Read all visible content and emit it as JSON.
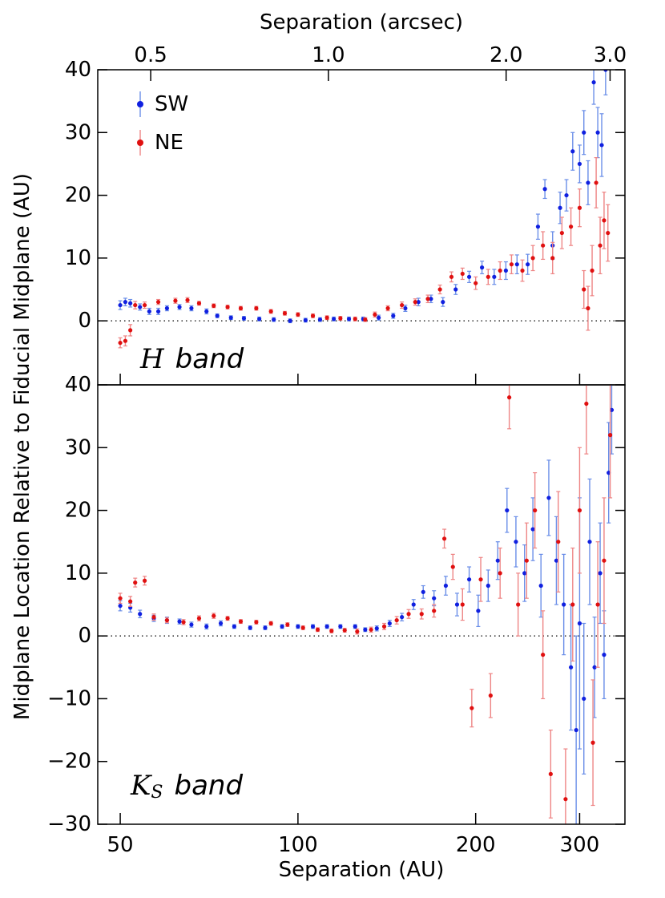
{
  "chart_data": [
    {
      "type": "scatter",
      "x2label": "Separation (arcsec)",
      "ylabel": "Midplane Location Relative to Fiducial Midplane (AU)",
      "annotation": [
        "H",
        "band"
      ],
      "xscale": "log",
      "xlim": [
        45.8,
        358
      ],
      "x2lim": [
        0.4067,
        3.179
      ],
      "x2ticks": [
        {
          "value": 0.5,
          "label": "0.5"
        },
        {
          "value": 1,
          "label": "1.0"
        },
        {
          "value": 2,
          "label": "2.0"
        },
        {
          "value": 3,
          "label": "3.0"
        }
      ],
      "ylim": [
        -10.2,
        40
      ],
      "yticks": [
        0,
        10,
        20,
        30,
        40
      ],
      "zero_line": true,
      "legend": "upper left",
      "series": [
        {
          "name": "SW",
          "color": "#1020e0",
          "errorbar_color": "#6a8ee8",
          "x": [
            50,
            51,
            52,
            54,
            56,
            58,
            60,
            63,
            66,
            70,
            73,
            77,
            81,
            86,
            91,
            97,
            103,
            109,
            115,
            122,
            129,
            137,
            145,
            152,
            160,
            168,
            176,
            185,
            195,
            205,
            215,
            225,
            235,
            245,
            255,
            262,
            270,
            278,
            285,
            292,
            300,
            305,
            310,
            317,
            322,
            327,
            332
          ],
          "values": [
            2.5,
            3,
            2.8,
            2.2,
            1.5,
            1.5,
            2.0,
            2.2,
            2.0,
            1.5,
            0.8,
            0.5,
            0.4,
            0.3,
            0.2,
            0.0,
            0.1,
            0.2,
            0.3,
            0.3,
            0.3,
            0.5,
            0.8,
            2.0,
            3.0,
            3.5,
            3.0,
            5.0,
            7,
            8.5,
            7,
            8,
            9,
            9,
            15,
            21,
            12,
            18,
            20,
            27,
            25,
            30,
            22,
            38,
            30,
            28,
            40
          ],
          "errors": [
            0.7,
            0.6,
            0.6,
            0.5,
            0.5,
            0.5,
            0.4,
            0.4,
            0.4,
            0.4,
            0.3,
            0.3,
            0.3,
            0.3,
            0.3,
            0.3,
            0.3,
            0.3,
            0.3,
            0.3,
            0.3,
            0.4,
            0.4,
            0.5,
            0.6,
            0.6,
            0.7,
            0.8,
            0.9,
            1,
            1.2,
            1.4,
            1.5,
            1.6,
            2,
            1.5,
            2.2,
            2.5,
            2.5,
            3,
            3,
            3.5,
            3.5,
            3.5,
            4,
            5,
            4
          ]
        },
        {
          "name": "NE",
          "color": "#e01010",
          "errorbar_color": "#ee8585",
          "x": [
            50,
            51,
            52,
            53,
            55,
            58,
            62,
            65,
            68,
            72,
            76,
            80,
            85,
            90,
            95,
            100,
            106,
            112,
            118,
            125,
            130,
            135,
            142,
            150,
            158,
            166,
            174,
            182,
            190,
            200,
            210,
            220,
            230,
            240,
            250,
            260,
            270,
            280,
            290,
            300,
            305,
            310,
            315,
            320,
            325,
            330,
            335
          ],
          "values": [
            -3.5,
            -3.2,
            -1.5,
            2.5,
            2.5,
            3.0,
            3.2,
            3.3,
            2.8,
            2.4,
            2.2,
            2.0,
            2.0,
            1.5,
            1.2,
            1.0,
            0.8,
            0.5,
            0.4,
            0.3,
            0.2,
            1.0,
            2.0,
            2.5,
            3.0,
            3.5,
            5,
            7,
            7.5,
            6,
            7,
            8,
            9,
            8,
            10,
            12,
            10,
            14,
            15,
            18,
            5,
            2,
            8,
            22,
            12,
            16,
            14
          ],
          "errors": [
            0.8,
            0.8,
            0.9,
            0.6,
            0.5,
            0.4,
            0.4,
            0.4,
            0.3,
            0.3,
            0.3,
            0.3,
            0.3,
            0.3,
            0.3,
            0.3,
            0.3,
            0.3,
            0.3,
            0.3,
            0.3,
            0.4,
            0.4,
            0.5,
            0.5,
            0.6,
            0.7,
            0.8,
            0.9,
            1,
            1.2,
            1.4,
            1.5,
            1.7,
            2,
            2.2,
            2.5,
            2.5,
            3,
            3,
            3,
            3.5,
            4,
            4,
            4.5,
            4.5,
            4.5
          ]
        }
      ]
    },
    {
      "type": "scatter",
      "xlabel": "Separation (AU)",
      "annotation": [
        "K",
        "S",
        "band"
      ],
      "xscale": "log",
      "xlim": [
        45.8,
        358
      ],
      "xticks": [
        50,
        100,
        200,
        300
      ],
      "ylim": [
        -30,
        40
      ],
      "yticks": [
        {
          "value": -30,
          "label": "−30"
        },
        {
          "value": -20,
          "label": "−20"
        },
        {
          "value": -10,
          "label": "−10"
        },
        0,
        10,
        20,
        30,
        40
      ],
      "zero_line": true,
      "series": [
        {
          "name": "SW",
          "color": "#1020e0",
          "errorbar_color": "#6a8ee8",
          "x": [
            50,
            52,
            54,
            57,
            60,
            63,
            66,
            70,
            74,
            78,
            83,
            88,
            94,
            100,
            106,
            112,
            118,
            125,
            130,
            136,
            143,
            150,
            157,
            163,
            170,
            178,
            186,
            195,
            202,
            210,
            218,
            226,
            234,
            242,
            250,
            258,
            266,
            274,
            282,
            290,
            296,
            300,
            305,
            312,
            318,
            325,
            330,
            336,
            340
          ],
          "values": [
            4.8,
            4.5,
            3.5,
            2.8,
            2.5,
            2.3,
            1.8,
            1.5,
            2,
            1.5,
            1.3,
            1.3,
            1.5,
            1.5,
            1.5,
            1.5,
            1.5,
            1.5,
            1.0,
            1.2,
            2.0,
            3,
            5,
            7,
            6,
            8,
            5,
            9,
            4,
            8,
            12,
            20,
            15,
            10,
            17,
            8,
            22,
            12,
            5,
            -5,
            -15,
            2,
            -10,
            15,
            -5,
            10,
            -3,
            26,
            36
          ],
          "errors": [
            0.8,
            0.7,
            0.6,
            0.5,
            0.5,
            0.4,
            0.4,
            0.4,
            0.4,
            0.3,
            0.3,
            0.3,
            0.3,
            0.3,
            0.3,
            0.3,
            0.3,
            0.3,
            0.3,
            0.4,
            0.5,
            0.6,
            0.8,
            1,
            1.2,
            1.5,
            1.8,
            2,
            2.5,
            2.5,
            3,
            3.5,
            4,
            4.5,
            5,
            5,
            6,
            7,
            8,
            10,
            15,
            20,
            12,
            10,
            8,
            8,
            7,
            8,
            7
          ]
        },
        {
          "name": "NE",
          "color": "#e01010",
          "errorbar_color": "#ee8585",
          "x": [
            50,
            52,
            53,
            55,
            57,
            60,
            64,
            68,
            72,
            76,
            80,
            85,
            90,
            96,
            102,
            108,
            114,
            120,
            126,
            133,
            140,
            147,
            154,
            162,
            170,
            177,
            183,
            190,
            197,
            204,
            212,
            220,
            228,
            236,
            244,
            252,
            260,
            268,
            276,
            284,
            292,
            300,
            308,
            316,
            322,
            330,
            338
          ],
          "values": [
            6,
            5.5,
            8.5,
            8.8,
            3,
            2.5,
            2.2,
            2.8,
            3.2,
            2.8,
            2.3,
            2.2,
            2,
            1.8,
            1.3,
            1.0,
            0.8,
            0.9,
            0.7,
            1.0,
            1.5,
            2.5,
            3.5,
            3.5,
            4,
            15.5,
            11,
            5,
            -11.5,
            9,
            -9.5,
            10,
            38,
            5,
            12,
            20,
            -3,
            -22,
            15,
            -26,
            5,
            20,
            37,
            -17,
            5,
            12,
            32
          ],
          "errors": [
            0.8,
            0.8,
            0.7,
            0.7,
            0.5,
            0.4,
            0.4,
            0.4,
            0.4,
            0.3,
            0.3,
            0.3,
            0.3,
            0.3,
            0.3,
            0.3,
            0.3,
            0.3,
            0.4,
            0.4,
            0.5,
            0.6,
            0.7,
            0.8,
            1,
            1.5,
            2,
            2.5,
            3,
            3.5,
            3.5,
            4,
            5,
            5,
            6,
            6,
            7,
            7,
            8,
            8,
            9,
            10,
            8,
            10,
            10,
            10,
            10
          ]
        }
      ]
    }
  ]
}
